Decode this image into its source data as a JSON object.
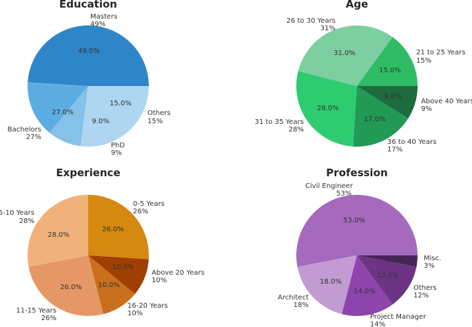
{
  "chart_data": [
    {
      "type": "pie",
      "title": "Education",
      "start_angle": 0,
      "counterclock": true,
      "categories": [
        "Masters",
        "Others",
        "PhD",
        "Bachelors"
      ],
      "values": [
        49,
        15,
        9,
        27
      ],
      "pct_labels": [
        "49.0%",
        "15.0%",
        "9.0%",
        "27.0%"
      ],
      "outer_labels": [
        "49%",
        "15%",
        "9%",
        "27%"
      ],
      "colors": [
        "#2e86c8",
        "#5dade2",
        "#85c1e9",
        "#aed6f1"
      ]
    },
    {
      "type": "pie",
      "title": "Age",
      "start_angle": 0,
      "counterclock": true,
      "categories": [
        "21 to 25 Years",
        "26 to 30 Years",
        "31 to 35 Years",
        "36 to 40 Years",
        "Above 40 Years"
      ],
      "values": [
        15,
        31,
        28,
        17,
        9
      ],
      "pct_labels": [
        "15.0%",
        "31.0%",
        "28.0%",
        "17.0%",
        "9.0%"
      ],
      "outer_labels": [
        "15%",
        "31%",
        "28%",
        "17%",
        "9%"
      ],
      "colors": [
        "#2ebd64",
        "#7dcea0",
        "#2ecc71",
        "#229954",
        "#1e6b3d"
      ]
    },
    {
      "type": "pie",
      "title": "Experience",
      "start_angle": 90,
      "counterclock": false,
      "categories": [
        "0-5 Years",
        "Above 20 Years",
        "16-20 Years",
        "11-15 Years",
        "5-10 Years"
      ],
      "values": [
        26,
        10,
        10,
        26,
        28
      ],
      "pct_labels": [
        "26.0%",
        "10.0%",
        "10.0%",
        "26.0%",
        "28.0%"
      ],
      "outer_labels": [
        "26%",
        "10%",
        "10%",
        "26%",
        "28%"
      ],
      "colors": [
        "#d68910",
        "#a04000",
        "#ca6f1e",
        "#e59866",
        "#f0b27a"
      ]
    },
    {
      "type": "pie",
      "title": "Profession",
      "start_angle": 0,
      "counterclock": true,
      "categories": [
        "Civil Engineer",
        "Architect",
        "Project Manager",
        "Others",
        "Misc."
      ],
      "values": [
        53,
        18,
        14,
        12,
        3
      ],
      "pct_labels": [
        "53.0%",
        "18.0%",
        "14.0%",
        "12.0%",
        "3.0%"
      ],
      "outer_labels": [
        "53%",
        "18%",
        "14%",
        "12%",
        "3%"
      ],
      "colors": [
        "#a569bd",
        "#c39bd3",
        "#8e44ad",
        "#6c3483",
        "#4a235a"
      ]
    }
  ]
}
